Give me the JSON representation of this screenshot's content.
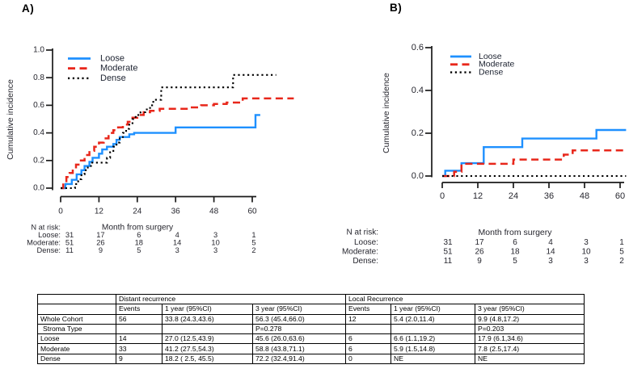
{
  "chart_data": [
    {
      "type": "line",
      "step": true,
      "panel_label": "A)",
      "title": "",
      "xlabel": "Month from surgery",
      "ylabel": "Cumulative incidence",
      "xticks": [
        0,
        12,
        24,
        36,
        48,
        60
      ],
      "yticks": [
        0.0,
        0.2,
        0.4,
        0.6,
        0.8,
        1.0
      ],
      "ylim": [
        0,
        1.0
      ],
      "xlim": [
        0,
        73
      ],
      "grid": false,
      "legend_position": "top-left",
      "series": [
        {
          "name": "Loose",
          "color": "#1e90ff",
          "style": "solid",
          "points": [
            [
              0,
              0
            ],
            [
              1.5,
              0.03
            ],
            [
              3.5,
              0.06
            ],
            [
              5,
              0.1
            ],
            [
              6.5,
              0.13
            ],
            [
              7.5,
              0.16
            ],
            [
              9,
              0.19
            ],
            [
              10,
              0.22
            ],
            [
              12,
              0.25
            ],
            [
              13,
              0.28
            ],
            [
              14.5,
              0.3
            ],
            [
              16.5,
              0.32
            ],
            [
              17.5,
              0.35
            ],
            [
              18.5,
              0.37
            ],
            [
              21.5,
              0.39
            ],
            [
              23,
              0.4
            ],
            [
              36,
              0.44
            ],
            [
              61,
              0.53
            ],
            [
              62.5,
              0.53
            ]
          ]
        },
        {
          "name": "Moderate",
          "color": "#e8271b",
          "style": "dashed",
          "points": [
            [
              0,
              0
            ],
            [
              0.8,
              0.04
            ],
            [
              1.8,
              0.08
            ],
            [
              2.8,
              0.11
            ],
            [
              3.8,
              0.14
            ],
            [
              4.8,
              0.17
            ],
            [
              6,
              0.2
            ],
            [
              7.5,
              0.24
            ],
            [
              9,
              0.27
            ],
            [
              10.5,
              0.3
            ],
            [
              12,
              0.33
            ],
            [
              13.5,
              0.36
            ],
            [
              15,
              0.4
            ],
            [
              16.5,
              0.42
            ],
            [
              18,
              0.44
            ],
            [
              19.5,
              0.46
            ],
            [
              21,
              0.48
            ],
            [
              22.5,
              0.51
            ],
            [
              24,
              0.53
            ],
            [
              26,
              0.55
            ],
            [
              28,
              0.56
            ],
            [
              31,
              0.575
            ],
            [
              40,
              0.585
            ],
            [
              44,
              0.6
            ],
            [
              48,
              0.61
            ],
            [
              52,
              0.62
            ],
            [
              57,
              0.65
            ],
            [
              73,
              0.65
            ]
          ]
        },
        {
          "name": "Dense",
          "color": "#000000",
          "style": "dotted",
          "points": [
            [
              0,
              0
            ],
            [
              4.5,
              0.03
            ],
            [
              5.5,
              0.065
            ],
            [
              6.5,
              0.1
            ],
            [
              7.5,
              0.13
            ],
            [
              8.5,
              0.16
            ],
            [
              9.5,
              0.185
            ],
            [
              13.5,
              0.185
            ],
            [
              14.5,
              0.22
            ],
            [
              15.5,
              0.26
            ],
            [
              16.5,
              0.3
            ],
            [
              17.5,
              0.33
            ],
            [
              18.5,
              0.36
            ],
            [
              19.5,
              0.4
            ],
            [
              20.5,
              0.43
            ],
            [
              21.5,
              0.47
            ],
            [
              22.5,
              0.5
            ],
            [
              23.5,
              0.53
            ],
            [
              25,
              0.55
            ],
            [
              26.5,
              0.57
            ],
            [
              28,
              0.6
            ],
            [
              29,
              0.64
            ],
            [
              31.5,
              0.73
            ],
            [
              54,
              0.82
            ],
            [
              67.5,
              0.82
            ]
          ]
        }
      ],
      "risk_table": {
        "header": "N at risk:",
        "axis_caption": "Month from surgery",
        "rows": [
          {
            "label": "Loose:",
            "counts": [
              31,
              17,
              6,
              4,
              3,
              1
            ]
          },
          {
            "label": "Moderate:",
            "counts": [
              51,
              26,
              18,
              14,
              10,
              5
            ]
          },
          {
            "label": "Dense:",
            "counts": [
              11,
              9,
              5,
              3,
              3,
              2
            ]
          }
        ]
      }
    },
    {
      "type": "line",
      "step": true,
      "panel_label": "B)",
      "title": "",
      "xlabel": "Month from surgery",
      "ylabel": "Cumulative incidence",
      "xticks": [
        0,
        12,
        24,
        36,
        48,
        60
      ],
      "yticks": [
        0.0,
        0.2,
        0.4,
        0.6
      ],
      "ylim": [
        0,
        0.6
      ],
      "xlim": [
        0,
        62
      ],
      "grid": false,
      "legend_position": "top-left",
      "series": [
        {
          "name": "Loose",
          "color": "#1e90ff",
          "style": "solid",
          "points": [
            [
              0,
              0
            ],
            [
              1,
              0.025
            ],
            [
              6.5,
              0.06
            ],
            [
              14,
              0.135
            ],
            [
              27,
              0.175
            ],
            [
              52,
              0.215
            ],
            [
              62,
              0.215
            ]
          ]
        },
        {
          "name": "Moderate",
          "color": "#e8271b",
          "style": "dashed",
          "points": [
            [
              0,
              0
            ],
            [
              4,
              0.02
            ],
            [
              6.5,
              0.057
            ],
            [
              24,
              0.077
            ],
            [
              41,
              0.1
            ],
            [
              44,
              0.12
            ],
            [
              62,
              0.12
            ]
          ]
        },
        {
          "name": "Dense",
          "color": "#000000",
          "style": "dotted",
          "points": [
            [
              0,
              0
            ],
            [
              62,
              0
            ]
          ]
        }
      ],
      "risk_table": {
        "header": "N at risk:",
        "axis_caption": "Month from surgery",
        "rows": [
          {
            "label": "Loose:",
            "counts": [
              31,
              17,
              6,
              4,
              3,
              1
            ]
          },
          {
            "label": "Moderate:",
            "counts": [
              51,
              26,
              18,
              14,
              10,
              5
            ]
          },
          {
            "label": "Dense:",
            "counts": [
              11,
              9,
              5,
              3,
              3,
              2
            ]
          }
        ]
      }
    }
  ],
  "summary_table": {
    "section_headers": [
      "",
      "Distant recurrence",
      "Local Recurrence"
    ],
    "col_headers": [
      "",
      "Events",
      "1 year (95%CI)",
      "3 year (95%CI)",
      "Events",
      "1 year (95%CI)",
      "3 year (95%CI)"
    ],
    "rows": [
      [
        "Whole Cohort",
        "56",
        "33.8 (24.3,43.6)",
        "56.3 (45.4,66.0)",
        "12",
        "5.4 (2.0,11.4)",
        "9.9 (4.8,17.2)"
      ],
      [
        "Stroma Type",
        "",
        "",
        "P=0.278",
        "",
        "",
        "P=0.203"
      ],
      [
        "Loose",
        "14",
        "27.0 (12.5,43.9)",
        "45.6 (26.0,63.6)",
        "6",
        "6.6 (1.1,19.2)",
        "17.9 (6.1,34.6)"
      ],
      [
        "Moderate",
        "33",
        "41.2 (27.5,54.3)",
        "58.8 (43.8,71.1)",
        "6",
        "5.9 (1.5,14.8)",
        "7.8 (2.5,17.4)"
      ],
      [
        "Dense",
        "9",
        "18.2 ( 2.5, 45.5)",
        "72.2 (32.4,91.4)",
        "0",
        "NE",
        "NE"
      ]
    ]
  },
  "colors": {
    "loose": "#1e90ff",
    "moderate": "#e8271b",
    "dense": "#000000",
    "axis_text": "#26262e",
    "axis_line": "#1a1a1a"
  }
}
